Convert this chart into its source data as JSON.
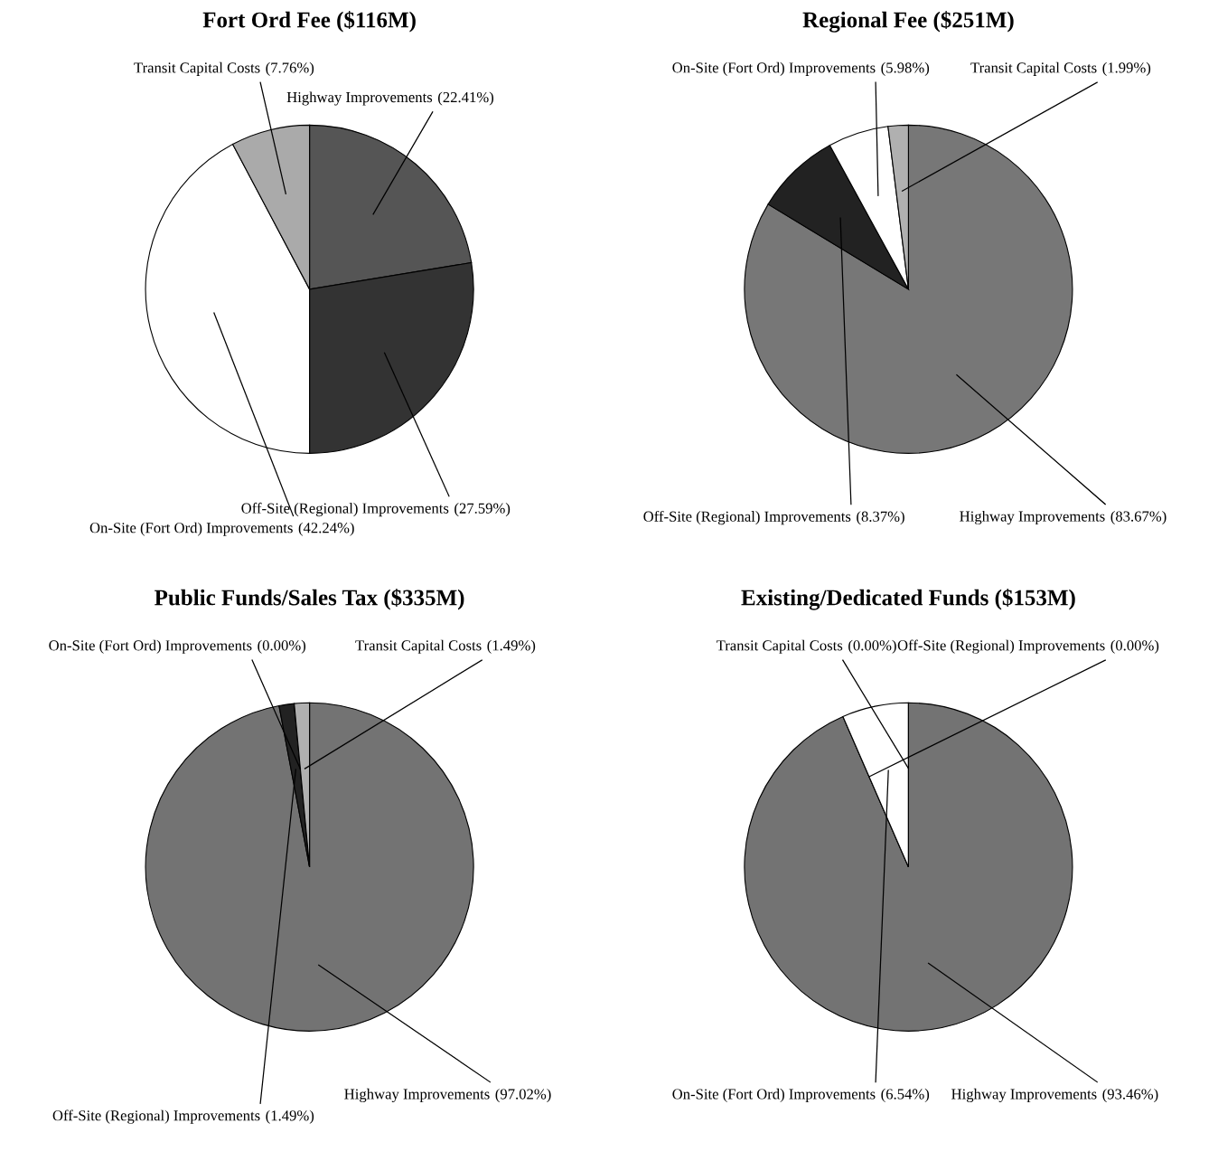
{
  "chart_data": [
    {
      "type": "pie",
      "title": "Fort Ord Fee ($116M)",
      "categories": [
        "Highway Improvements",
        "Off-Site (Regional) Improvements",
        "On-Site (Fort Ord) Improvements",
        "Transit Capital Costs"
      ],
      "values": [
        22.41,
        27.59,
        42.24,
        7.76
      ],
      "value_labels": [
        "(22.41%)",
        "(27.59%)",
        "(42.24%)",
        "(7.76%)"
      ],
      "colors": [
        "#555555",
        "#333333",
        "#ffffff",
        "#aaaaaa"
      ]
    },
    {
      "type": "pie",
      "title": "Regional Fee ($251M)",
      "categories": [
        "Highway Improvements",
        "Off-Site (Regional) Improvements",
        "On-Site (Fort Ord) Improvements",
        "Transit Capital Costs"
      ],
      "values": [
        83.67,
        8.37,
        5.98,
        1.99
      ],
      "value_labels": [
        "(83.67%)",
        "(8.37%)",
        "(5.98%)",
        "(1.99%)"
      ],
      "colors": [
        "#777777",
        "#222222",
        "#ffffff",
        "#b0b0b0"
      ]
    },
    {
      "type": "pie",
      "title": "Public Funds/Sales Tax ($335M)",
      "categories": [
        "Highway Improvements",
        "Off-Site (Regional) Improvements",
        "On-Site (Fort Ord) Improvements",
        "Transit Capital Costs"
      ],
      "values": [
        97.02,
        1.49,
        0.0,
        1.49
      ],
      "value_labels": [
        "(97.02%)",
        "(1.49%)",
        "(0.00%)",
        "(1.49%)"
      ],
      "colors": [
        "#737373",
        "#222222",
        "#ffffff",
        "#b0b0b0"
      ]
    },
    {
      "type": "pie",
      "title": "Existing/Dedicated Funds ($153M)",
      "categories": [
        "Highway Improvements",
        "Off-Site (Regional) Improvements",
        "On-Site (Fort Ord) Improvements",
        "Transit Capital Costs"
      ],
      "values": [
        93.46,
        0.0,
        6.54,
        0.0
      ],
      "value_labels": [
        "(93.46%)",
        "(0.00%)",
        "(6.54%)",
        "(0.00%)"
      ],
      "colors": [
        "#737373",
        "#222222",
        "#ffffff",
        "#b0b0b0"
      ]
    }
  ]
}
